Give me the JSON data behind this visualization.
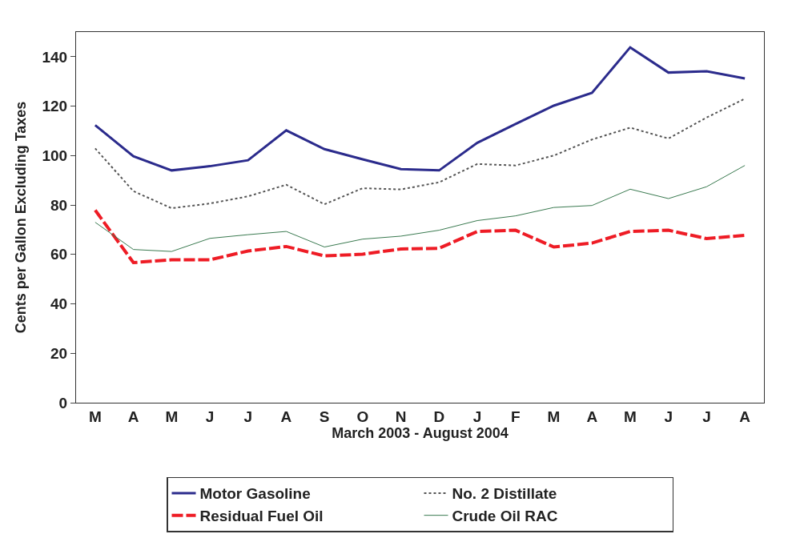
{
  "chart_data": {
    "type": "line",
    "xlabel": "March 2003 - August 2004",
    "ylabel": "Cents per Gallon Excluding Taxes",
    "categories": [
      "M",
      "A",
      "M",
      "J",
      "J",
      "A",
      "S",
      "O",
      "N",
      "D",
      "J",
      "F",
      "M",
      "A",
      "M",
      "J",
      "J",
      "A"
    ],
    "ylim": [
      0,
      150
    ],
    "yticks": [
      0,
      20,
      40,
      60,
      80,
      100,
      120,
      140
    ],
    "legend": "bottom",
    "marker": "none",
    "series": [
      {
        "name": "Motor Gasoline",
        "color": "#2b2b8c",
        "line_style": "solid",
        "values": [
          112.3,
          99.7,
          94.0,
          95.7,
          98.1,
          110.2,
          102.6,
          98.5,
          94.5,
          94.0,
          105.2,
          112.8,
          120.2,
          125.4,
          143.8,
          133.6,
          134.1,
          131.2
        ]
      },
      {
        "name": "No. 2 Distillate",
        "color": "#555555",
        "line_style": "dotted",
        "values": [
          102.9,
          85.6,
          78.7,
          80.6,
          83.5,
          88.2,
          80.3,
          86.8,
          86.3,
          89.2,
          96.6,
          96.0,
          100.0,
          106.5,
          111.3,
          106.9,
          115.4,
          123.0
        ]
      },
      {
        "name": "Residual Fuel Oil",
        "color": "#ee1c25",
        "line_style": "dashed",
        "values": [
          77.9,
          56.7,
          57.8,
          57.8,
          61.4,
          63.2,
          59.4,
          60.1,
          62.2,
          62.5,
          69.3,
          69.8,
          63.0,
          64.6,
          69.3,
          69.8,
          66.4,
          67.7
        ]
      },
      {
        "name": "Crude Oil RAC",
        "color": "#3a7a50",
        "line_style": "solid",
        "values": [
          73.0,
          62.0,
          61.2,
          66.5,
          68.0,
          69.3,
          63.0,
          66.2,
          67.4,
          69.8,
          73.7,
          75.6,
          79.0,
          79.8,
          86.4,
          82.6,
          87.4,
          96.0
        ]
      }
    ]
  }
}
